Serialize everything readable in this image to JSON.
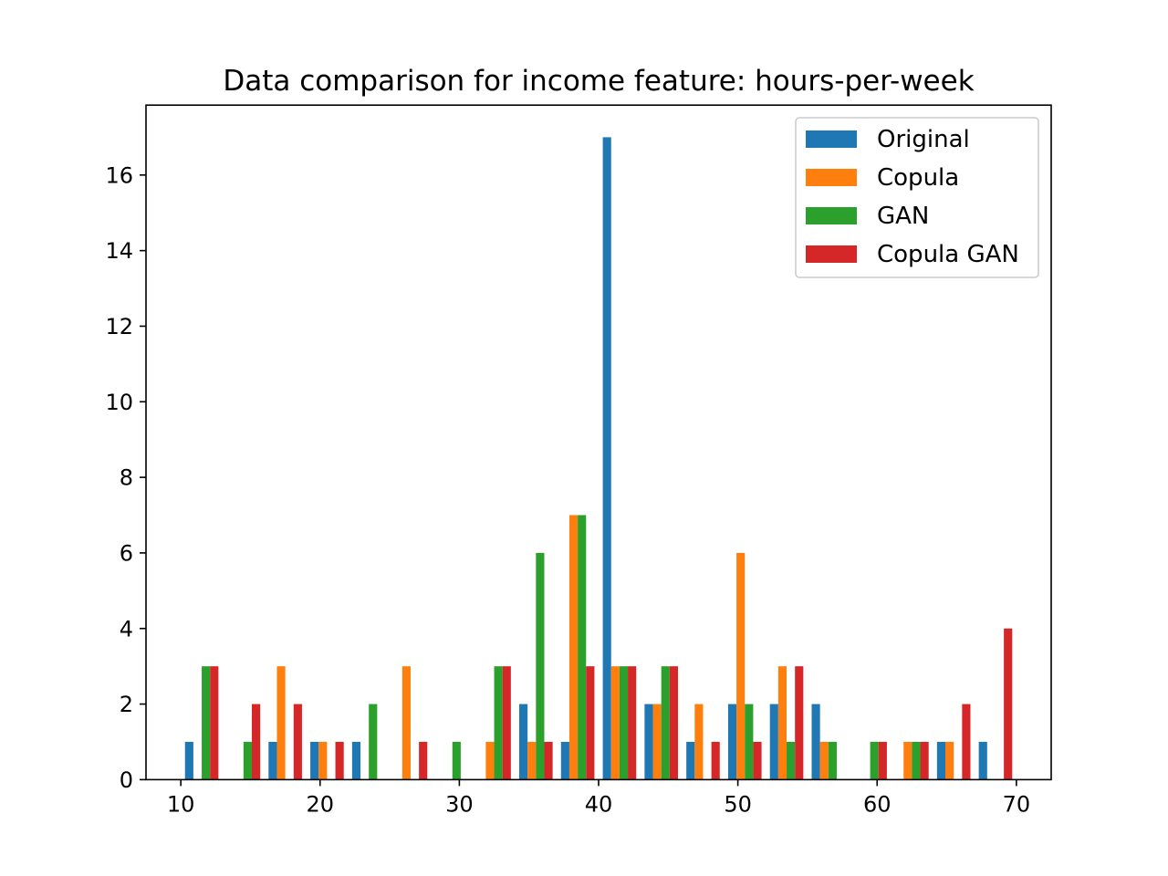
{
  "chart_data": {
    "type": "bar",
    "title": "Data comparison for income feature: hours-per-week",
    "xlabel": "",
    "ylabel": "",
    "xlim": [
      7.5,
      72.5
    ],
    "ylim": [
      0,
      17.85
    ],
    "xticks": [
      10,
      20,
      30,
      40,
      50,
      60,
      70
    ],
    "yticks": [
      0,
      2,
      4,
      6,
      8,
      10,
      12,
      14,
      16
    ],
    "grid": false,
    "legend_position": "top-right",
    "bin_start": 10,
    "bin_width": 3,
    "bins": 20,
    "series": [
      {
        "name": "Original",
        "color": "#1f77b4",
        "values": [
          1,
          0,
          1,
          1,
          1,
          0,
          0,
          0,
          2,
          1,
          17,
          2,
          1,
          2,
          2,
          2,
          0,
          0,
          1,
          1
        ]
      },
      {
        "name": "Copula",
        "color": "#ff7f0e",
        "values": [
          0,
          0,
          3,
          1,
          0,
          3,
          0,
          1,
          1,
          7,
          3,
          2,
          2,
          6,
          3,
          1,
          0,
          1,
          1,
          0
        ]
      },
      {
        "name": "GAN",
        "color": "#2ca02c",
        "values": [
          3,
          1,
          0,
          0,
          2,
          0,
          1,
          3,
          6,
          7,
          3,
          3,
          0,
          2,
          1,
          1,
          1,
          1,
          0,
          0
        ]
      },
      {
        "name": "Copula GAN",
        "color": "#d62728",
        "values": [
          3,
          2,
          2,
          1,
          0,
          1,
          0,
          3,
          1,
          3,
          3,
          3,
          1,
          1,
          3,
          0,
          1,
          1,
          2,
          4
        ]
      }
    ]
  }
}
